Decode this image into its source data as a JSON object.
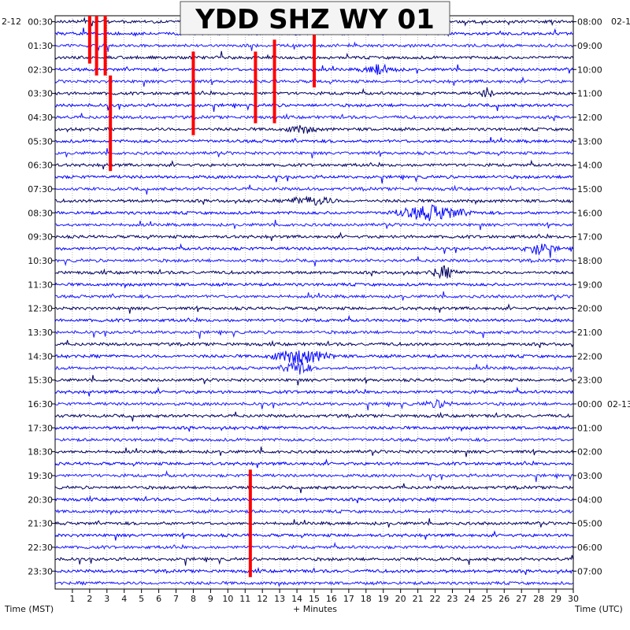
{
  "chart_data": {
    "type": "line",
    "title": "YDD SHZ WY 01",
    "xlabel": "+ Minutes",
    "ylabel_left": "Time (MST)",
    "ylabel_right": "Time (UTC)",
    "date_left": "2-12",
    "date_right_top": "02-1",
    "date_right_mid": "02-13",
    "x_ticks": [
      "1",
      "2",
      "3",
      "4",
      "5",
      "6",
      "7",
      "8",
      "9",
      "10",
      "11",
      "12",
      "13",
      "14",
      "15",
      "16",
      "17",
      "18",
      "19",
      "20",
      "21",
      "22",
      "23",
      "24",
      "25",
      "26",
      "27",
      "28",
      "29",
      "30"
    ],
    "xlim": [
      0,
      30
    ],
    "rows_per_hour": 2,
    "row_count": 48,
    "left_labels": [
      "00:30",
      "01:30",
      "02:30",
      "03:30",
      "04:30",
      "05:30",
      "06:30",
      "07:30",
      "08:30",
      "09:30",
      "10:30",
      "11:30",
      "12:30",
      "13:30",
      "14:30",
      "15:30",
      "16:30",
      "17:30",
      "18:30",
      "19:30",
      "20:30",
      "21:30",
      "22:30",
      "23:30"
    ],
    "right_labels": [
      "08:00",
      "09:00",
      "10:00",
      "11:00",
      "12:00",
      "13:00",
      "14:00",
      "15:00",
      "16:00",
      "17:00",
      "18:00",
      "19:00",
      "20:00",
      "21:00",
      "22:00",
      "23:00",
      "00:00",
      "01:00",
      "02:00",
      "03:00",
      "04:00",
      "05:00",
      "06:00",
      "07:00"
    ],
    "trace_colors": [
      "#000060",
      "#0000ff",
      "#1a1aff"
    ],
    "clip_color": "#ff0000",
    "events": [
      {
        "row": 9,
        "start_min": 13.0,
        "end_min": 15.5,
        "amp": 4
      },
      {
        "row": 15,
        "start_min": 13.2,
        "end_min": 16.5,
        "amp": 6
      },
      {
        "row": 16,
        "start_min": 19.0,
        "end_min": 24.5,
        "amp": 9
      },
      {
        "row": 19,
        "start_min": 26.8,
        "end_min": 29.3,
        "amp": 7
      },
      {
        "row": 21,
        "start_min": 21.5,
        "end_min": 23.5,
        "amp": 7
      },
      {
        "row": 28,
        "start_min": 12.0,
        "end_min": 16.5,
        "amp": 9
      },
      {
        "row": 29,
        "start_min": 13.0,
        "end_min": 15.0,
        "amp": 10
      },
      {
        "row": 32,
        "start_min": 21.0,
        "end_min": 23.5,
        "amp": 4
      },
      {
        "row": 4,
        "start_min": 17.5,
        "end_min": 20.0,
        "amp": 6
      },
      {
        "row": 6,
        "start_min": 24.5,
        "end_min": 25.5,
        "amp": 6
      }
    ],
    "clipped_events": [
      {
        "minute": 2.0,
        "row_start": 0,
        "row_end": 3
      },
      {
        "minute": 2.4,
        "row_start": 0,
        "row_end": 4
      },
      {
        "minute": 2.9,
        "row_start": 0,
        "row_end": 4
      },
      {
        "minute": 3.2,
        "row_start": 5,
        "row_end": 12
      },
      {
        "minute": 8.0,
        "row_start": 3,
        "row_end": 9
      },
      {
        "minute": 11.6,
        "row_start": 3,
        "row_end": 8
      },
      {
        "minute": 12.7,
        "row_start": 2,
        "row_end": 8
      },
      {
        "minute": 15.0,
        "row_start": 0,
        "row_end": 5
      },
      {
        "minute": 11.3,
        "row_start": 38,
        "row_end": 46
      }
    ],
    "grid": true
  }
}
